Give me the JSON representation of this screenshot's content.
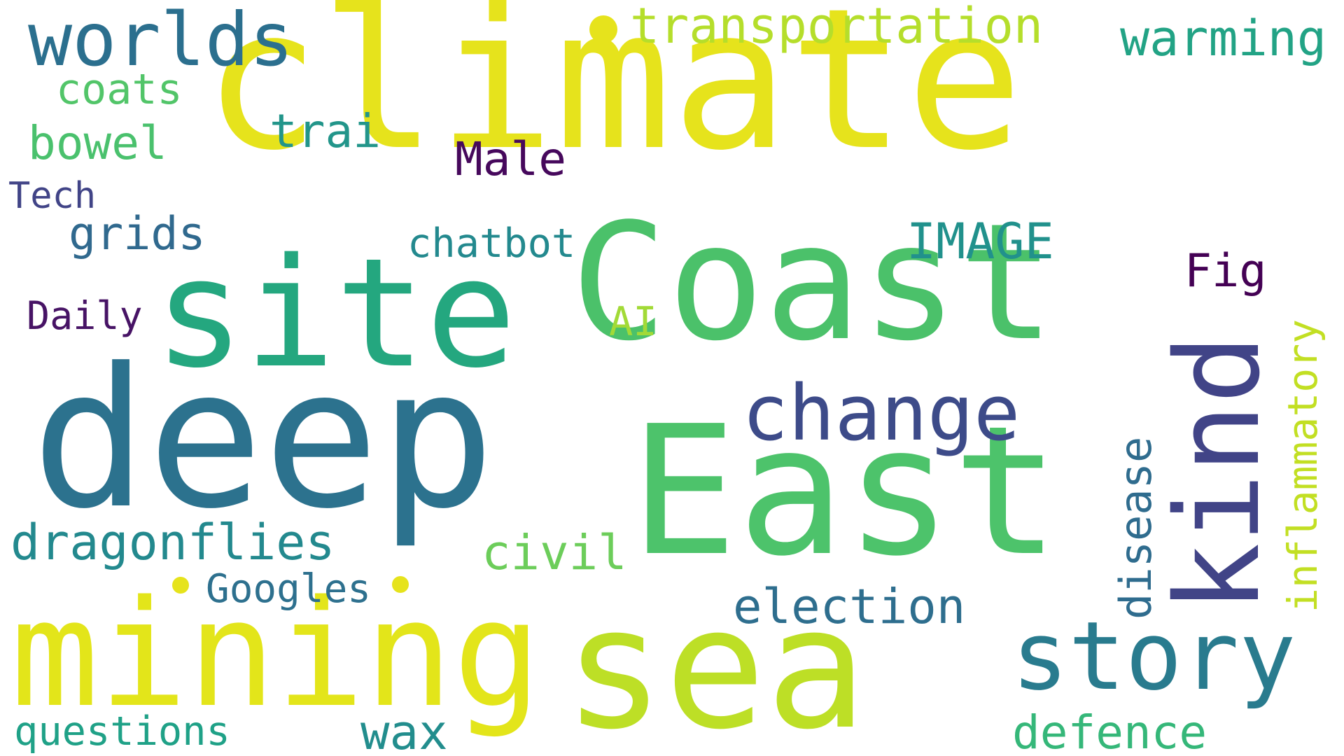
{
  "wordcloud": {
    "words": {
      "climate": {
        "text": "climate",
        "color": "#e6e31c"
      },
      "coast": {
        "text": "Coast",
        "color": "#4bc16a"
      },
      "site": {
        "text": "site",
        "color": "#24a77f"
      },
      "deep": {
        "text": "deep",
        "color": "#2c728e"
      },
      "east": {
        "text": "East",
        "color": "#4dc36b"
      },
      "mining": {
        "text": "mining",
        "color": "#e3e51a"
      },
      "sea": {
        "text": "sea",
        "color": "#bddf26"
      },
      "story": {
        "text": "story",
        "color": "#297b8e"
      },
      "kind": {
        "text": "kind",
        "color": "#414487"
      },
      "change": {
        "text": "change",
        "color": "#3d4b89"
      },
      "worlds": {
        "text": "worlds",
        "color": "#2b6f8e"
      },
      "transportation": {
        "text": "transportation",
        "color": "#b5de2b"
      },
      "warming": {
        "text": "warming",
        "color": "#22a385"
      },
      "coats": {
        "text": "coats",
        "color": "#52c569"
      },
      "trai": {
        "text": "trai",
        "color": "#22958a"
      },
      "bowel": {
        "text": "bowel",
        "color": "#4ac16d"
      },
      "male": {
        "text": "Male",
        "color": "#46085c"
      },
      "tech": {
        "text": "Tech",
        "color": "#414487"
      },
      "grids": {
        "text": "grids",
        "color": "#30698e"
      },
      "chatbot": {
        "text": "chatbot",
        "color": "#23898e"
      },
      "image": {
        "text": "IMAGE",
        "color": "#21918c"
      },
      "fig": {
        "text": "Fig",
        "color": "#440154"
      },
      "inflammatory": {
        "text": "inflammatory",
        "color": "#c2df23"
      },
      "daily": {
        "text": "Daily",
        "color": "#471365"
      },
      "ai": {
        "text": "AI",
        "color": "#a2da37"
      },
      "disease": {
        "text": "disease",
        "color": "#2f6c8e"
      },
      "dragonflies": {
        "text": "dragonflies",
        "color": "#23898e"
      },
      "civil": {
        "text": "civil",
        "color": "#6ccd5a"
      },
      "googles": {
        "text": "Googles",
        "color": "#2d708e"
      },
      "election": {
        "text": "election",
        "color": "#2e6e8e"
      },
      "questions": {
        "text": "questions",
        "color": "#1fa187"
      },
      "wax": {
        "text": "wax",
        "color": "#228d8d"
      },
      "defence": {
        "text": "defence",
        "color": "#35b779"
      }
    },
    "dots": [
      {
        "color": "#e6e31c"
      },
      {
        "color": "#e6e31c"
      },
      {
        "color": "#e6e31c"
      }
    ]
  }
}
